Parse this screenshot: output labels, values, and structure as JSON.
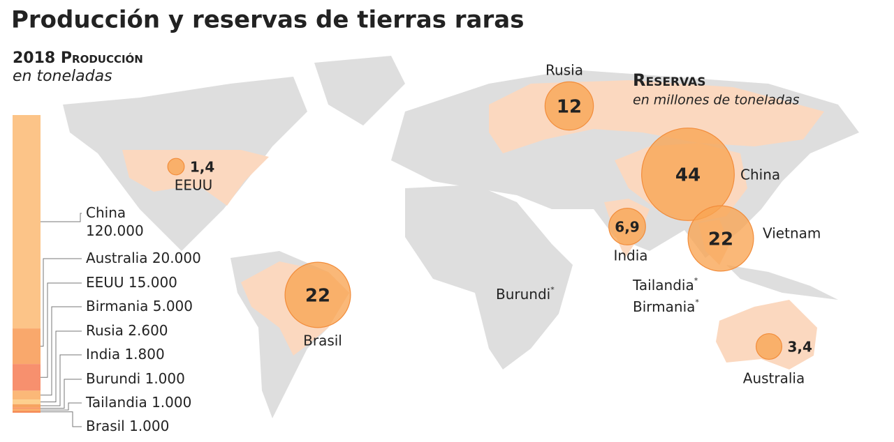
{
  "title": "Producción y reservas de tierras raras",
  "production": {
    "heading": "2018 Producción",
    "unit": "en toneladas",
    "items": [
      {
        "name": "China",
        "value": 120000,
        "value_label": "120.000",
        "color": "#fcc488"
      },
      {
        "name": "Australia",
        "value": 20000,
        "value_label": "20.000",
        "color": "#f9a86c"
      },
      {
        "name": "EEUU",
        "value": 15000,
        "value_label": "15.000",
        "color": "#f7906e"
      },
      {
        "name": "Birmania",
        "value": 5000,
        "value_label": "5.000",
        "color": "#fbb878"
      },
      {
        "name": "Rusia",
        "value": 2600,
        "value_label": "2.600",
        "color": "#fdd08e"
      },
      {
        "name": "India",
        "value": 1800,
        "value_label": "1.800",
        "color": "#f6a460"
      },
      {
        "name": "Burundi",
        "value": 1000,
        "value_label": "1.000",
        "color": "#f99a66"
      },
      {
        "name": "Tailandia",
        "value": 1000,
        "value_label": "1.000",
        "color": "#fbb06a"
      },
      {
        "name": "Brasil",
        "value": 1000,
        "value_label": "1.000",
        "color": "#f58a56"
      }
    ]
  },
  "reserves": {
    "heading": "Reservas",
    "unit": "en millones de toneladas",
    "color": "#f9a452",
    "items": [
      {
        "name": "Rusia",
        "value": 12
      },
      {
        "name": "China",
        "value": 44
      },
      {
        "name": "Vietnam",
        "value": 22
      },
      {
        "name": "Brasil",
        "value": 22
      },
      {
        "name": "India",
        "value": 6.9,
        "value_label": "6,9"
      },
      {
        "name": "EEUU",
        "value": 1.4,
        "value_label": "1,4"
      },
      {
        "name": "Australia",
        "value": 3.4,
        "value_label": "3,4"
      }
    ]
  },
  "no_reserve_data": [
    "Burundi",
    "Tailandia",
    "Birmania"
  ],
  "note_mark": "*"
}
